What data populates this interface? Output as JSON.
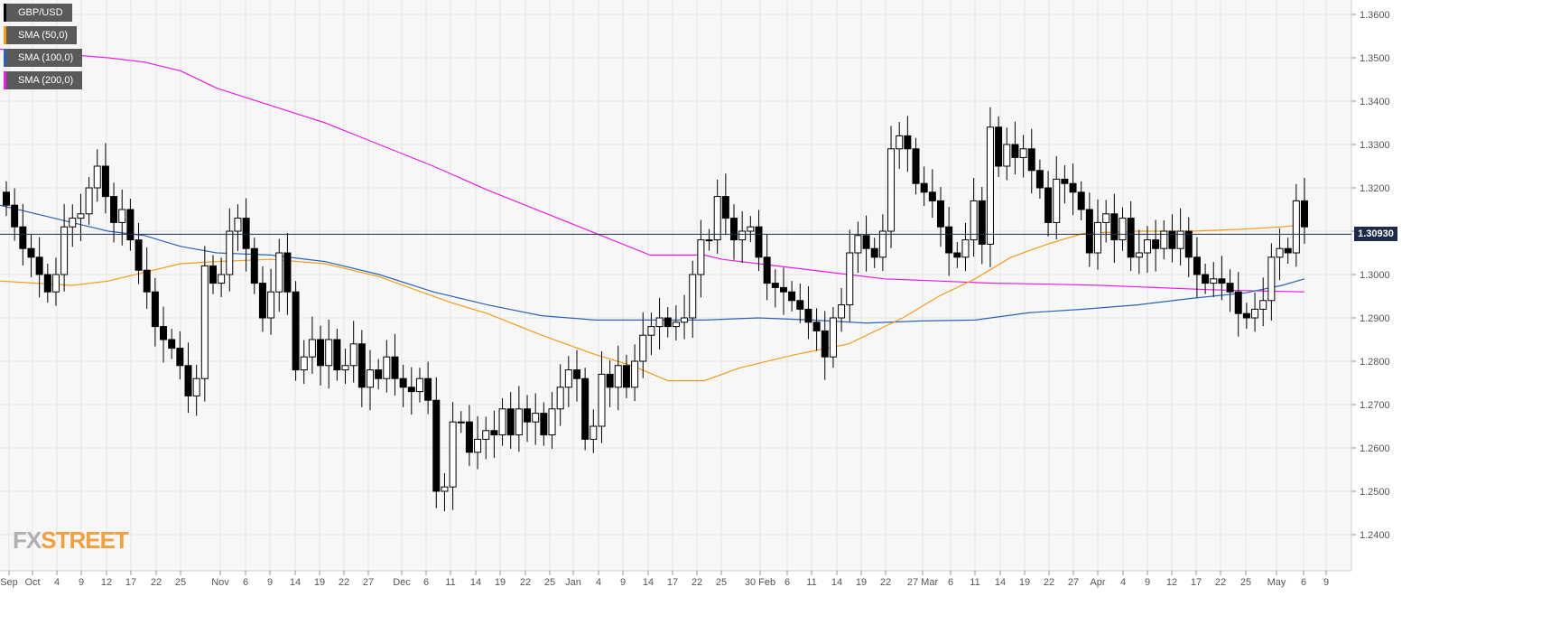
{
  "chart_data": {
    "type": "candlestick",
    "title": "",
    "instrument": "GBP/USD",
    "ylim": [
      1.232,
      1.367
    ],
    "y_ticks": [
      "1.3600",
      "1.3500",
      "1.3400",
      "1.3300",
      "1.3200",
      "1.3100",
      "1.3000",
      "1.2900",
      "1.2800",
      "1.2700",
      "1.2600",
      "1.2500",
      "1.2400"
    ],
    "x_ticks": [
      "Sep",
      "Oct",
      "4",
      "9",
      "12",
      "17",
      "22",
      "25",
      "Nov",
      "6",
      "9",
      "14",
      "19",
      "22",
      "27",
      "Dec",
      "6",
      "11",
      "14",
      "19",
      "22",
      "25",
      "Jan",
      "4",
      "9",
      "14",
      "17",
      "22",
      "25",
      "30 Feb",
      "6",
      "11",
      "14",
      "19",
      "22",
      "27 Mar",
      "6",
      "11",
      "14",
      "19",
      "22",
      "27",
      "Apr",
      "4",
      "9",
      "12",
      "17",
      "22",
      "25",
      "May",
      "6",
      "9"
    ],
    "current_price": "1.30930",
    "closes": [
      1.316,
      1.311,
      1.306,
      1.304,
      1.3,
      1.296,
      1.3,
      1.311,
      1.313,
      1.314,
      1.32,
      1.325,
      1.318,
      1.312,
      1.315,
      1.308,
      1.301,
      1.296,
      1.288,
      1.285,
      1.283,
      1.279,
      1.272,
      1.276,
      1.302,
      1.298,
      1.3,
      1.31,
      1.313,
      1.306,
      1.298,
      1.29,
      1.296,
      1.305,
      1.296,
      1.278,
      1.281,
      1.285,
      1.279,
      1.285,
      1.278,
      1.279,
      1.284,
      1.274,
      1.278,
      1.276,
      1.281,
      1.276,
      1.274,
      1.273,
      1.276,
      1.271,
      1.25,
      1.251,
      1.266,
      1.266,
      1.259,
      1.262,
      1.264,
      1.263,
      1.269,
      1.263,
      1.269,
      1.266,
      1.268,
      1.263,
      1.269,
      1.274,
      1.278,
      1.276,
      1.262,
      1.265,
      1.277,
      1.274,
      1.279,
      1.274,
      1.28,
      1.286,
      1.288,
      1.29,
      1.288,
      1.289,
      1.29,
      1.3,
      1.308,
      1.308,
      1.318,
      1.313,
      1.308,
      1.31,
      1.311,
      1.304,
      1.298,
      1.297,
      1.296,
      1.294,
      1.292,
      1.289,
      1.287,
      1.281,
      1.29,
      1.293,
      1.305,
      1.309,
      1.306,
      1.304,
      1.31,
      1.329,
      1.332,
      1.329,
      1.321,
      1.319,
      1.317,
      1.311,
      1.305,
      1.304,
      1.308,
      1.317,
      1.307,
      1.334,
      1.325,
      1.33,
      1.327,
      1.329,
      1.324,
      1.32,
      1.312,
      1.322,
      1.321,
      1.319,
      1.315,
      1.305,
      1.312,
      1.314,
      1.308,
      1.313,
      1.304,
      1.305,
      1.308,
      1.306,
      1.31,
      1.306,
      1.31,
      1.304,
      1.3,
      1.298,
      1.299,
      1.298,
      1.296,
      1.291,
      1.29,
      1.292,
      1.294,
      1.304,
      1.306,
      1.305,
      1.317,
      1.311
    ]
  },
  "legend": [
    {
      "label": "GBP/USD",
      "color": "#000000"
    },
    {
      "label": "SMA (50,0)",
      "color": "#f39c1e"
    },
    {
      "label": "SMA (100,0)",
      "color": "#2b63b8"
    },
    {
      "label": "SMA (200,0)",
      "color": "#e81ee8"
    }
  ],
  "colors": {
    "bull_fill": "#ffffff",
    "bear_fill": "#000000",
    "grid": "#e6e6e6",
    "background": "#f7f7f7",
    "price_line": "#1d2b4a"
  },
  "logo": {
    "part1": "FX",
    "part2": "STREET"
  }
}
